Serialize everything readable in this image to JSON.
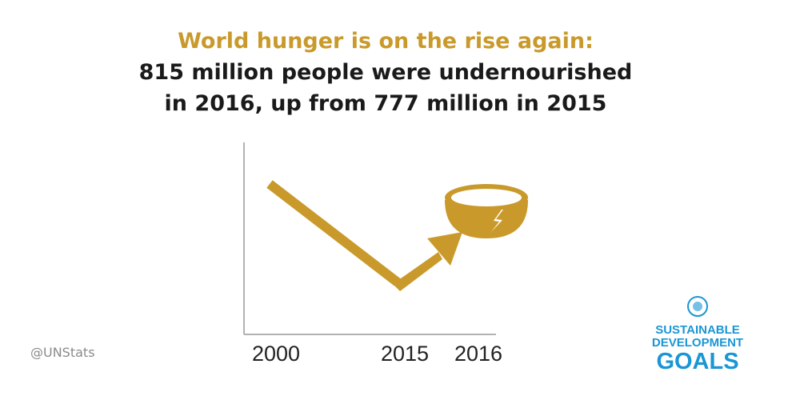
{
  "header": {
    "title": "World hunger is on the rise again:",
    "subtitle_lines": [
      "815 million people were undernourished",
      "in 2016, up from 777 million in 2015"
    ]
  },
  "axis_labels": [
    "2000",
    "2015",
    "2016"
  ],
  "credit": "@UNStats",
  "logo": {
    "lines": [
      "SUSTAINABLE",
      "DEVELOPMENT",
      "GOALS"
    ]
  }
}
